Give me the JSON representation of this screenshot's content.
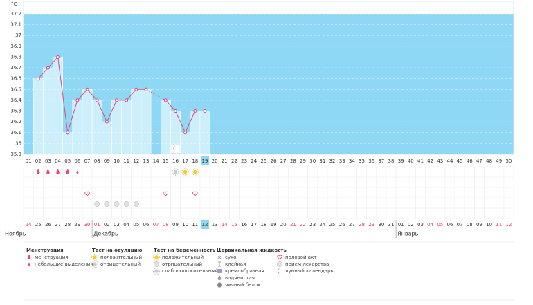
{
  "chart_data": {
    "type": "line",
    "y_unit": "°C",
    "categories": [
      "01",
      "02",
      "03",
      "04",
      "05",
      "06",
      "07",
      "08",
      "09",
      "10",
      "11",
      "12",
      "13",
      "14",
      "15",
      "16",
      "17",
      "18",
      "19",
      "20",
      "21",
      "22",
      "23",
      "24",
      "25",
      "26",
      "27",
      "28",
      "29",
      "30",
      "31",
      "32",
      "33",
      "34",
      "35",
      "36",
      "37",
      "38",
      "39",
      "40",
      "41",
      "42",
      "43",
      "44",
      "45",
      "46",
      "47",
      "48",
      "49",
      "50"
    ],
    "values": [
      null,
      36.6,
      36.7,
      36.8,
      36.1,
      36.4,
      36.5,
      36.4,
      36.2,
      36.4,
      36.4,
      36.5,
      36.5,
      null,
      36.4,
      36.3,
      36.1,
      36.3,
      36.3,
      null,
      null,
      null,
      null,
      null,
      null,
      null,
      null,
      null,
      null,
      null,
      null,
      null,
      null,
      null,
      null,
      null,
      null,
      null,
      null,
      null,
      null,
      null,
      null,
      null,
      null,
      null,
      null,
      null,
      null,
      null
    ],
    "ylim": [
      35.9,
      37.2
    ],
    "yticks": [
      35.9,
      36,
      36.1,
      36.2,
      36.3,
      36.4,
      36.5,
      36.6,
      36.7,
      36.8,
      36.9,
      37,
      37.1,
      37.2
    ],
    "grid": true,
    "line_color": "#e0457a",
    "plot_color": "#8fd8f5",
    "bar_color": "#cdeefb",
    "today": "19",
    "dates": [
      "24",
      "25",
      "26",
      "27",
      "28",
      "29",
      "30",
      "01",
      "02",
      "03",
      "04",
      "05",
      "06",
      "07",
      "08",
      "09",
      "10",
      "11",
      "12",
      "13",
      "14",
      "15",
      "16",
      "17",
      "18",
      "19",
      "20",
      "21",
      "22",
      "23",
      "24",
      "25",
      "26",
      "27",
      "28",
      "29",
      "30",
      "31",
      "01",
      "02",
      "03",
      "04",
      "05",
      "06",
      "07",
      "08",
      "09",
      "10",
      "11",
      "12"
    ],
    "weekend": [
      true,
      false,
      false,
      false,
      false,
      false,
      true,
      true,
      false,
      false,
      false,
      false,
      false,
      true,
      true,
      false,
      false,
      false,
      false,
      false,
      true,
      true,
      false,
      false,
      false,
      false,
      false,
      true,
      true,
      false,
      false,
      false,
      false,
      false,
      true,
      true,
      false,
      false,
      false,
      false,
      false,
      true,
      true,
      false,
      false,
      false,
      false,
      false,
      true,
      true
    ],
    "months": [
      "Ноябрь",
      "Декабрь",
      "Январь"
    ],
    "markers": {
      "menstruation_heavy": [
        "02",
        "03",
        "04",
        "05"
      ],
      "menstruation_light": [
        "06"
      ],
      "ovulation_positive": [
        "17",
        "18"
      ],
      "ovulation_negative": [
        "16"
      ],
      "intercourse": [
        "07",
        "15",
        "18"
      ],
      "medication": [
        "08",
        "09",
        "10",
        "11",
        "12"
      ],
      "lunar": [
        "16"
      ]
    },
    "legend": [
      {
        "title": "Менструация",
        "items": [
          "менструация",
          "небольшие выделения"
        ]
      },
      {
        "title": "Тест на овуляцию",
        "items": [
          "положительный",
          "отрицательный"
        ]
      },
      {
        "title": "Тест на беременность",
        "items": [
          "положительный",
          "отрицательный",
          "слабоположительный"
        ]
      },
      {
        "title": "Цервикальная жидкость",
        "items": [
          "сухо",
          "клейкая",
          "кремообразная",
          "водянистая",
          "яичный белок"
        ]
      },
      {
        "title": null,
        "items": [
          "половой акт",
          "прием лекарства",
          "лунный календарь"
        ]
      }
    ]
  }
}
